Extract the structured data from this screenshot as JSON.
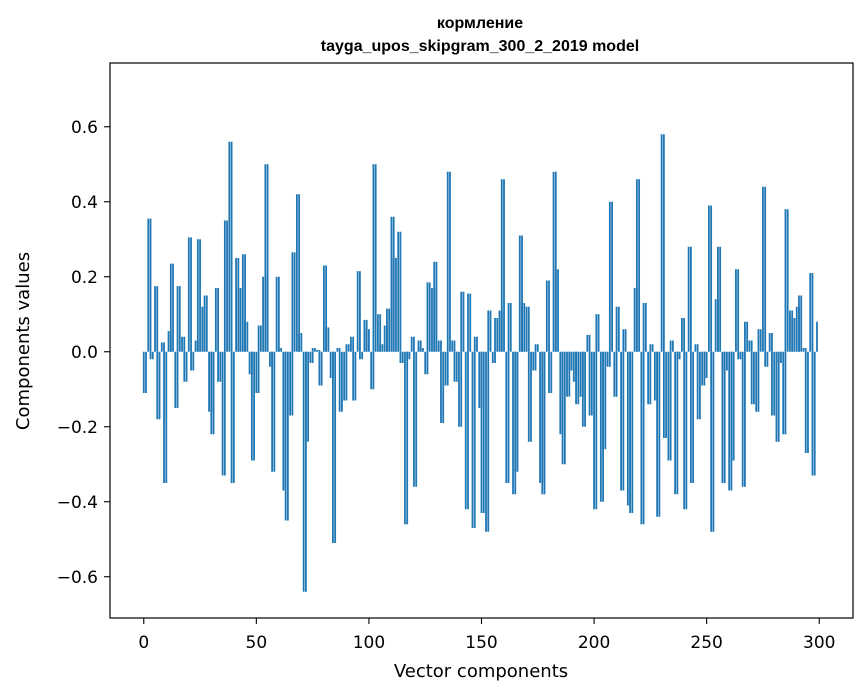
{
  "chart_data": {
    "type": "bar",
    "title": "кормление",
    "subtitle": "tayga_upos_skipgram_300_2_2019 model",
    "xlabel": "Vector components",
    "ylabel": "Components values",
    "xlim": [
      -15,
      315
    ],
    "ylim": [
      -0.71,
      0.77
    ],
    "x_ticks": [
      0,
      50,
      100,
      150,
      200,
      250,
      300
    ],
    "x_tick_labels": [
      "0",
      "50",
      "100",
      "150",
      "200",
      "250",
      "300"
    ],
    "y_ticks": [
      -0.6,
      -0.4,
      -0.2,
      0.0,
      0.2,
      0.4,
      0.6
    ],
    "y_tick_labels": [
      "−0.6",
      "−0.4",
      "−0.2",
      "0.0",
      "0.2",
      "0.4",
      "0.6"
    ],
    "bar_color": "#1f77b4",
    "grid": false,
    "values": [
      -0.11,
      0.355,
      -0.02,
      0.175,
      -0.18,
      0.025,
      -0.35,
      0.055,
      0.235,
      -0.15,
      0.175,
      0.04,
      -0.08,
      0.305,
      -0.05,
      0.03,
      0.3,
      0.12,
      0.15,
      -0.16,
      -0.22,
      0.17,
      -0.08,
      -0.33,
      0.35,
      0.56,
      -0.35,
      0.25,
      0.17,
      0.26,
      0.08,
      -0.06,
      -0.29,
      -0.11,
      0.07,
      0.2,
      0.5,
      -0.04,
      -0.32,
      0.2,
      0.01,
      -0.37,
      -0.45,
      -0.17,
      0.265,
      0.42,
      0.05,
      -0.64,
      -0.24,
      -0.03,
      0.01,
      0.005,
      -0.09,
      0.23,
      0.065,
      -0.07,
      -0.51,
      0.01,
      -0.16,
      -0.13,
      0.02,
      0.04,
      -0.13,
      0.215,
      -0.02,
      0.085,
      0.06,
      -0.1,
      0.5,
      0.1,
      0.02,
      0.07,
      0.115,
      0.36,
      0.25,
      0.32,
      -0.03,
      -0.46,
      -0.02,
      0.04,
      -0.36,
      0.03,
      0.01,
      -0.06,
      0.185,
      0.17,
      0.24,
      0.03,
      -0.19,
      -0.09,
      0.48,
      0.03,
      -0.08,
      -0.2,
      0.16,
      -0.42,
      0.155,
      -0.47,
      0.04,
      -0.15,
      -0.43,
      -0.48,
      0.11,
      -0.03,
      0.09,
      0.11,
      0.46,
      -0.35,
      0.13,
      -0.38,
      -0.32,
      0.31,
      0.13,
      0.12,
      -0.24,
      -0.05,
      0.02,
      -0.35,
      -0.38,
      0.19,
      -0.11,
      0.48,
      0.22,
      -0.22,
      -0.3,
      -0.12,
      -0.05,
      -0.08,
      -0.14,
      -0.12,
      -0.2,
      0.045,
      -0.17,
      -0.42,
      0.1,
      -0.4,
      -0.26,
      -0.04,
      0.4,
      -0.12,
      0.12,
      -0.37,
      0.06,
      -0.41,
      -0.43,
      0.17,
      0.46,
      -0.46,
      0.13,
      -0.14,
      0.02,
      -0.13,
      -0.44,
      0.58,
      -0.23,
      -0.29,
      0.03,
      -0.38,
      -0.02,
      0.09,
      -0.42,
      0.28,
      -0.35,
      0.02,
      -0.18,
      -0.09,
      -0.07,
      0.39,
      -0.48,
      0.14,
      0.28,
      -0.35,
      -0.05,
      -0.37,
      -0.29,
      0.22,
      -0.02,
      -0.36,
      0.08,
      0.03,
      -0.14,
      -0.16,
      0.06,
      0.44,
      -0.04,
      0.05,
      -0.17,
      -0.24,
      -0.03,
      -0.22,
      0.38,
      0.11,
      0.09,
      0.12,
      0.15,
      0.01,
      -0.27,
      0.21,
      -0.33,
      0.08
    ]
  }
}
